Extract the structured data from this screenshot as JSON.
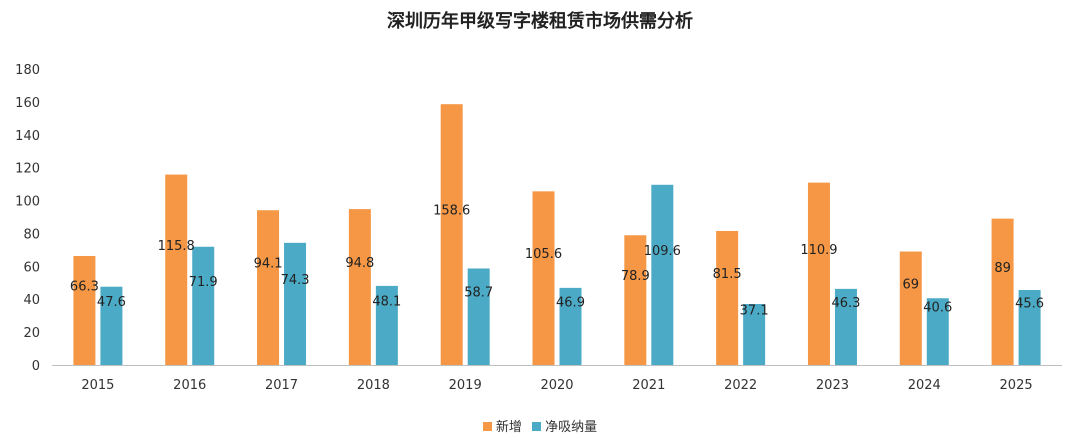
{
  "chart_data": {
    "type": "bar",
    "title": "深圳历年甲级写字楼租赁市场供需分析",
    "categories": [
      "2015",
      "2016",
      "2017",
      "2018",
      "2019",
      "2020",
      "2021",
      "2022",
      "2023",
      "2024",
      "2025"
    ],
    "series": [
      {
        "name": "新增",
        "color": "#F59744",
        "values": [
          66.3,
          115.8,
          94.1,
          94.8,
          158.6,
          105.6,
          78.9,
          81.5,
          110.9,
          69,
          89
        ]
      },
      {
        "name": "净吸纳量",
        "color": "#4BABC6",
        "values": [
          47.6,
          71.9,
          74.3,
          48.1,
          58.7,
          46.9,
          109.6,
          37.1,
          46.3,
          40.6,
          45.6
        ]
      }
    ],
    "ylim": [
      0,
      180
    ],
    "yticks": [
      0,
      20,
      40,
      60,
      80,
      100,
      120,
      140,
      160,
      180
    ],
    "xlabel": "",
    "ylabel": "",
    "grid": false,
    "legend": "bottom",
    "data_labels": true
  }
}
